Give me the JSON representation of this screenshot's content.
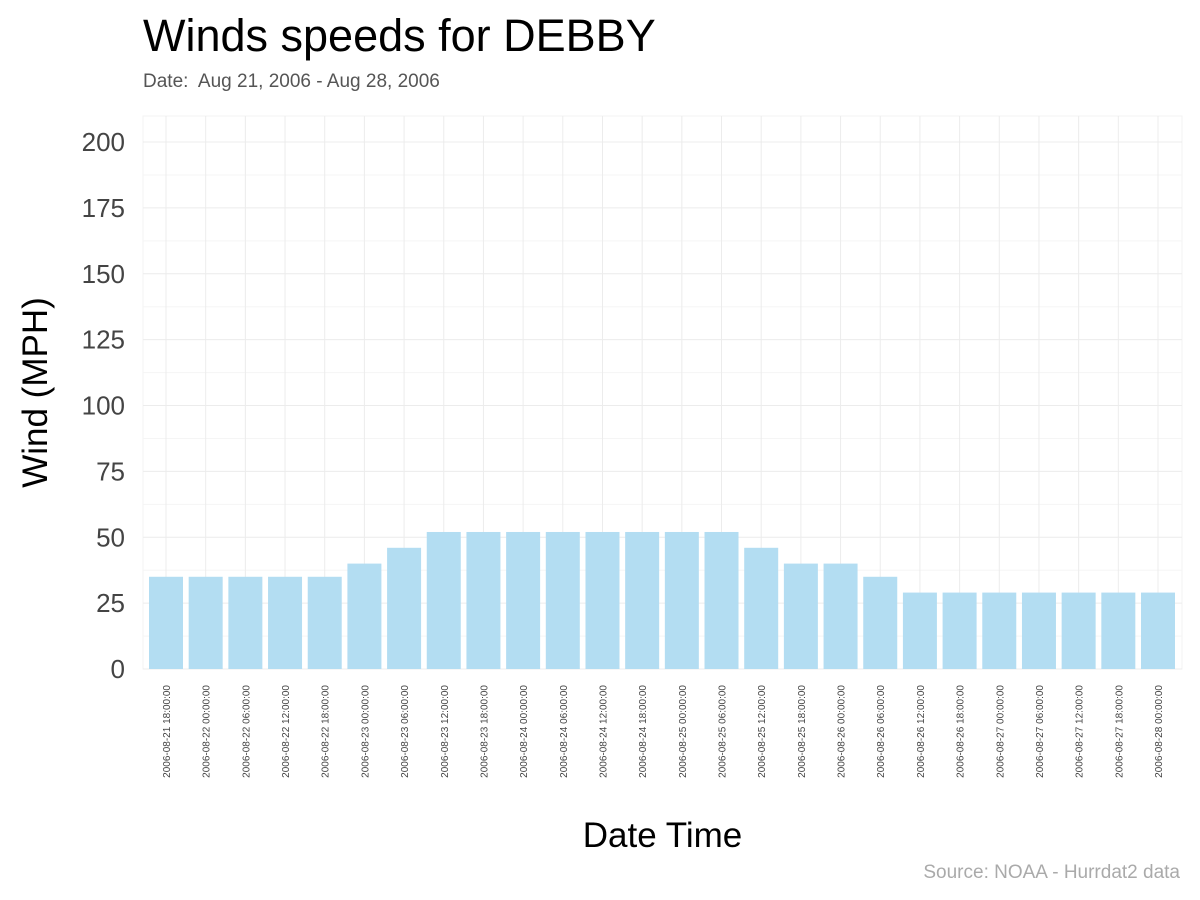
{
  "title": "Winds speeds for DEBBY",
  "subtitle": "Date:  Aug 21, 2006 - Aug 28, 2006",
  "caption": "Source: NOAA - Hurrdat2 data",
  "colors": {
    "bar": "#b3ddf2",
    "grid": "#ececec",
    "text": "#444444"
  },
  "chart_data": {
    "type": "bar",
    "title": "Winds speeds for DEBBY",
    "subtitle": "Date:  Aug 21, 2006 - Aug 28, 2006",
    "xlabel": "Date Time",
    "ylabel": "Wind (MPH)",
    "ylim": [
      0,
      210
    ],
    "yticks": [
      0,
      25,
      50,
      75,
      100,
      125,
      150,
      175,
      200
    ],
    "grid": true,
    "categories": [
      "2006-08-21 18:00:00",
      "2006-08-22 00:00:00",
      "2006-08-22 06:00:00",
      "2006-08-22 12:00:00",
      "2006-08-22 18:00:00",
      "2006-08-23 00:00:00",
      "2006-08-23 06:00:00",
      "2006-08-23 12:00:00",
      "2006-08-23 18:00:00",
      "2006-08-24 00:00:00",
      "2006-08-24 06:00:00",
      "2006-08-24 12:00:00",
      "2006-08-24 18:00:00",
      "2006-08-25 00:00:00",
      "2006-08-25 06:00:00",
      "2006-08-25 12:00:00",
      "2006-08-25 18:00:00",
      "2006-08-26 00:00:00",
      "2006-08-26 06:00:00",
      "2006-08-26 12:00:00",
      "2006-08-26 18:00:00",
      "2006-08-27 00:00:00",
      "2006-08-27 06:00:00",
      "2006-08-27 12:00:00",
      "2006-08-27 18:00:00",
      "2006-08-28 00:00:00"
    ],
    "values": [
      35,
      35,
      35,
      35,
      35,
      40,
      46,
      52,
      52,
      52,
      52,
      52,
      52,
      52,
      52,
      46,
      40,
      40,
      35,
      29,
      29,
      29,
      29,
      29,
      29,
      29
    ]
  }
}
